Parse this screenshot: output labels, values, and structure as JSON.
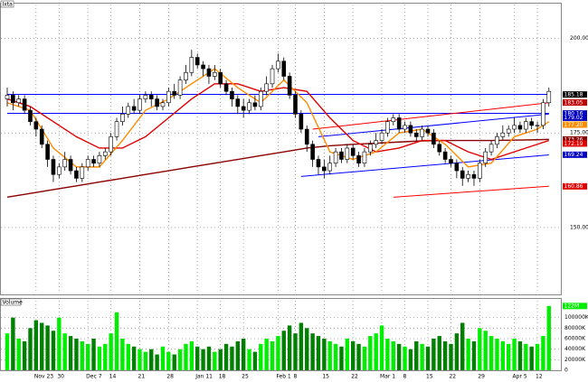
{
  "chart_data": {
    "type": "candlestick",
    "title": "Ixta",
    "categories": [
      null,
      null,
      null,
      null,
      null,
      "Nov 23",
      null,
      null,
      null,
      "30",
      null,
      null,
      null,
      null,
      "Dec 7",
      null,
      null,
      null,
      "14",
      null,
      null,
      null,
      null,
      "21",
      null,
      null,
      null,
      null,
      "28",
      null,
      null,
      null,
      null,
      "Jan 11",
      null,
      null,
      null,
      "18",
      null,
      null,
      null,
      "25",
      null,
      null,
      null,
      null,
      null,
      "Feb 1",
      null,
      null,
      "8",
      null,
      null,
      null,
      null,
      "15",
      null,
      null,
      null,
      null,
      "22",
      null,
      null,
      null,
      null,
      "Mar 1",
      null,
      null,
      null,
      "8",
      null,
      null,
      null,
      "15",
      null,
      null,
      null,
      "22",
      null,
      null,
      null,
      null,
      "29",
      null,
      null,
      null,
      null,
      null,
      "Apr 5",
      null,
      null,
      null,
      "12",
      null,
      null
    ],
    "candles": [
      [
        184,
        187,
        182,
        185
      ],
      [
        185,
        186,
        181,
        183
      ],
      [
        183,
        185,
        182,
        184
      ],
      [
        184,
        185,
        180,
        181
      ],
      [
        181,
        182,
        177,
        178
      ],
      [
        178,
        179,
        174,
        176
      ],
      [
        176,
        177,
        171,
        172
      ],
      [
        172,
        173,
        166,
        168
      ],
      [
        168,
        169,
        162,
        164
      ],
      [
        164,
        167,
        163,
        166
      ],
      [
        166,
        170,
        165,
        168
      ],
      [
        168,
        169,
        164,
        165
      ],
      [
        165,
        166,
        162,
        163
      ],
      [
        163,
        167,
        162,
        166
      ],
      [
        166,
        169,
        165,
        168
      ],
      [
        168,
        169,
        166,
        167
      ],
      [
        167,
        170,
        166,
        169
      ],
      [
        169,
        171,
        168,
        170
      ],
      [
        170,
        175,
        169,
        174
      ],
      [
        174,
        179,
        173,
        178
      ],
      [
        178,
        182,
        177,
        180
      ],
      [
        180,
        183,
        179,
        182
      ],
      [
        182,
        184,
        180,
        181
      ],
      [
        181,
        185,
        180,
        184
      ],
      [
        184,
        186,
        183,
        185
      ],
      [
        185,
        186,
        182,
        184
      ],
      [
        184,
        185,
        181,
        182
      ],
      [
        182,
        184,
        181,
        183
      ],
      [
        183,
        187,
        182,
        186
      ],
      [
        186,
        188,
        184,
        185
      ],
      [
        185,
        190,
        184,
        189
      ],
      [
        189,
        193,
        188,
        191
      ],
      [
        191,
        197,
        190,
        195
      ],
      [
        195,
        196,
        192,
        193
      ],
      [
        193,
        194,
        190,
        192
      ],
      [
        192,
        193,
        188,
        190
      ],
      [
        190,
        193,
        189,
        191
      ],
      [
        191,
        192,
        187,
        188
      ],
      [
        188,
        189,
        185,
        186
      ],
      [
        186,
        187,
        182,
        184
      ],
      [
        184,
        185,
        180,
        182
      ],
      [
        182,
        184,
        179,
        181
      ],
      [
        181,
        184,
        180,
        183
      ],
      [
        183,
        185,
        181,
        182
      ],
      [
        182,
        187,
        181,
        186
      ],
      [
        186,
        190,
        185,
        188
      ],
      [
        188,
        193,
        187,
        192
      ],
      [
        192,
        196,
        191,
        194
      ],
      [
        194,
        195,
        189,
        190
      ],
      [
        190,
        191,
        184,
        185
      ],
      [
        185,
        186,
        179,
        180
      ],
      [
        180,
        181,
        175,
        176
      ],
      [
        176,
        177,
        170,
        172
      ],
      [
        172,
        173,
        166,
        168
      ],
      [
        168,
        169,
        164,
        166
      ],
      [
        166,
        168,
        163,
        165
      ],
      [
        165,
        169,
        164,
        167
      ],
      [
        167,
        171,
        166,
        170
      ],
      [
        170,
        171,
        167,
        168
      ],
      [
        168,
        172,
        167,
        171
      ],
      [
        171,
        172,
        168,
        169
      ],
      [
        169,
        170,
        166,
        167
      ],
      [
        167,
        171,
        166,
        170
      ],
      [
        170,
        173,
        169,
        172
      ],
      [
        172,
        175,
        171,
        173
      ],
      [
        173,
        176,
        172,
        175
      ],
      [
        175,
        179,
        174,
        178
      ],
      [
        178,
        180,
        177,
        179
      ],
      [
        179,
        180,
        175,
        176
      ],
      [
        176,
        178,
        175,
        177
      ],
      [
        177,
        178,
        174,
        175
      ],
      [
        175,
        176,
        173,
        174
      ],
      [
        174,
        177,
        173,
        176
      ],
      [
        176,
        177,
        174,
        175
      ],
      [
        175,
        176,
        171,
        172
      ],
      [
        172,
        173,
        169,
        170
      ],
      [
        170,
        171,
        167,
        168
      ],
      [
        168,
        169,
        166,
        167
      ],
      [
        167,
        168,
        163,
        165
      ],
      [
        165,
        166,
        161,
        163
      ],
      [
        163,
        165,
        162,
        164
      ],
      [
        164,
        165,
        161,
        163
      ],
      [
        163,
        168,
        162,
        167
      ],
      [
        167,
        171,
        166,
        170
      ],
      [
        170,
        173,
        169,
        172
      ],
      [
        172,
        175,
        171,
        174
      ],
      [
        174,
        177,
        173,
        175
      ],
      [
        175,
        177,
        174,
        176
      ],
      [
        176,
        179,
        175,
        177
      ],
      [
        177,
        178,
        175,
        176
      ],
      [
        176,
        179,
        175,
        178
      ],
      [
        178,
        179,
        176,
        177
      ],
      [
        177,
        178,
        175,
        177
      ],
      [
        177,
        184,
        176,
        183
      ],
      [
        183,
        187,
        182,
        186
      ]
    ],
    "up_color": "#ffffff",
    "down_color": "#000000",
    "ylim": [
      132.5,
      209
    ],
    "yticks": [
      {
        "value": 150,
        "label": "150.00"
      },
      {
        "value": 175,
        "label": "175.00"
      },
      {
        "value": 200,
        "label": "200.00"
      }
    ],
    "moving_averages": [
      {
        "color": "#8b0000",
        "x": [
          0,
          4,
          8,
          12,
          16,
          20,
          24,
          28,
          32,
          36,
          40,
          44,
          48,
          52,
          56,
          60,
          64,
          68,
          72,
          76,
          80,
          84,
          88,
          92,
          94
        ],
        "values": [
          158,
          159,
          160,
          161,
          162,
          163,
          164,
          165,
          166,
          167,
          168,
          169,
          170,
          171,
          171.6,
          172,
          172.3,
          172.6,
          172.9,
          173,
          173,
          173,
          173.1,
          173.2,
          173.3
        ]
      },
      {
        "color": "#e00000",
        "x": [
          0,
          4,
          8,
          12,
          16,
          20,
          24,
          28,
          32,
          36,
          40,
          44,
          48,
          52,
          56,
          60,
          64,
          68,
          72,
          76,
          80,
          84,
          88,
          92,
          94
        ],
        "values": [
          184,
          182,
          178,
          174,
          171,
          171,
          174,
          179,
          184,
          188,
          188,
          186,
          187,
          186,
          179,
          173,
          170,
          171,
          173,
          173,
          170,
          168,
          170,
          172,
          173
        ]
      },
      {
        "color": "#ff8c00",
        "x": [
          0,
          4,
          8,
          12,
          16,
          20,
          24,
          28,
          32,
          36,
          40,
          44,
          48,
          52,
          56,
          60,
          64,
          68,
          72,
          76,
          80,
          84,
          88,
          92,
          94
        ],
        "values": [
          183,
          181,
          171,
          166,
          166,
          173,
          181,
          184,
          188,
          192,
          187,
          183,
          189,
          183,
          170,
          168,
          170,
          175,
          176,
          172,
          166,
          167,
          174,
          176,
          178
        ]
      }
    ],
    "trendlines": [
      {
        "color": "#0000ff",
        "x": [
          0,
          94
        ],
        "values": [
          185.2,
          185.2
        ]
      },
      {
        "color": "#0000ff",
        "x": [
          0,
          94
        ],
        "values": [
          180.2,
          180.2
        ]
      },
      {
        "color": "#0000ff",
        "x": [
          51,
          94
        ],
        "values": [
          163.5,
          169.2
        ]
      },
      {
        "color": "#0000ff",
        "x": [
          54,
          94
        ],
        "values": [
          174,
          180
        ]
      },
      {
        "color": "#ff0000",
        "x": [
          53,
          94
        ],
        "values": [
          176,
          183
        ]
      },
      {
        "color": "#ff0000",
        "x": [
          67,
          94
        ],
        "values": [
          158,
          160.9
        ]
      }
    ],
    "price_labels": [
      {
        "value": 185.18,
        "label": "185.18",
        "color": "#000000"
      },
      {
        "value": 183.05,
        "label": "183.05",
        "color": "#c00000"
      },
      {
        "value": 180.16,
        "label": "180.16",
        "color": "#0000c0"
      },
      {
        "value": 179.02,
        "label": "179.02",
        "color": "#0000c0"
      },
      {
        "value": 177.2,
        "label": "177.20",
        "color": "#ff8c00"
      },
      {
        "value": 173.26,
        "label": "173.26",
        "color": "#8b0000"
      },
      {
        "value": 172.19,
        "label": "172.19",
        "color": "#e00000"
      },
      {
        "value": 169.24,
        "label": "169.24",
        "color": "#0000c0"
      },
      {
        "value": 160.86,
        "label": "160.86",
        "color": "#e00000"
      }
    ],
    "volume": {
      "title": "Volume",
      "up_color": "#00ee00",
      "down_color": "#008000",
      "values": [
        70000,
        100000,
        60000,
        55000,
        80000,
        95000,
        90000,
        85000,
        75000,
        100000,
        70000,
        65000,
        60000,
        55000,
        50000,
        60000,
        45000,
        50000,
        70000,
        110000,
        60000,
        50000,
        45000,
        40000,
        35000,
        40000,
        30000,
        45000,
        35000,
        30000,
        40000,
        50000,
        55000,
        45000,
        40000,
        45000,
        35000,
        40000,
        50000,
        45000,
        55000,
        60000,
        40000,
        35000,
        50000,
        60000,
        55000,
        65000,
        75000,
        85000,
        70000,
        90000,
        80000,
        70000,
        65000,
        60000,
        55000,
        50000,
        45000,
        60000,
        55000,
        50000,
        45000,
        65000,
        70000,
        85000,
        60000,
        55000,
        50000,
        45000,
        40000,
        55000,
        50000,
        45000,
        60000,
        65000,
        55000,
        50000,
        70000,
        90000,
        60000,
        55000,
        80000,
        75000,
        65000,
        60000,
        55000,
        50000,
        60000,
        55000,
        50000,
        45000,
        50000,
        65000,
        122000
      ],
      "ylim": [
        0,
        132000
      ],
      "yticks": [
        0,
        {
          "value": 20000,
          "label": "20000K"
        },
        {
          "value": 40000,
          "label": "40000K"
        },
        {
          "value": 60000,
          "label": "60000K"
        },
        {
          "value": 80000,
          "label": "80000K"
        },
        {
          "value": 100000,
          "label": "100000K"
        }
      ],
      "labels": [
        {
          "value": 122000,
          "label": "122M",
          "color": "#00ee00"
        }
      ]
    }
  }
}
